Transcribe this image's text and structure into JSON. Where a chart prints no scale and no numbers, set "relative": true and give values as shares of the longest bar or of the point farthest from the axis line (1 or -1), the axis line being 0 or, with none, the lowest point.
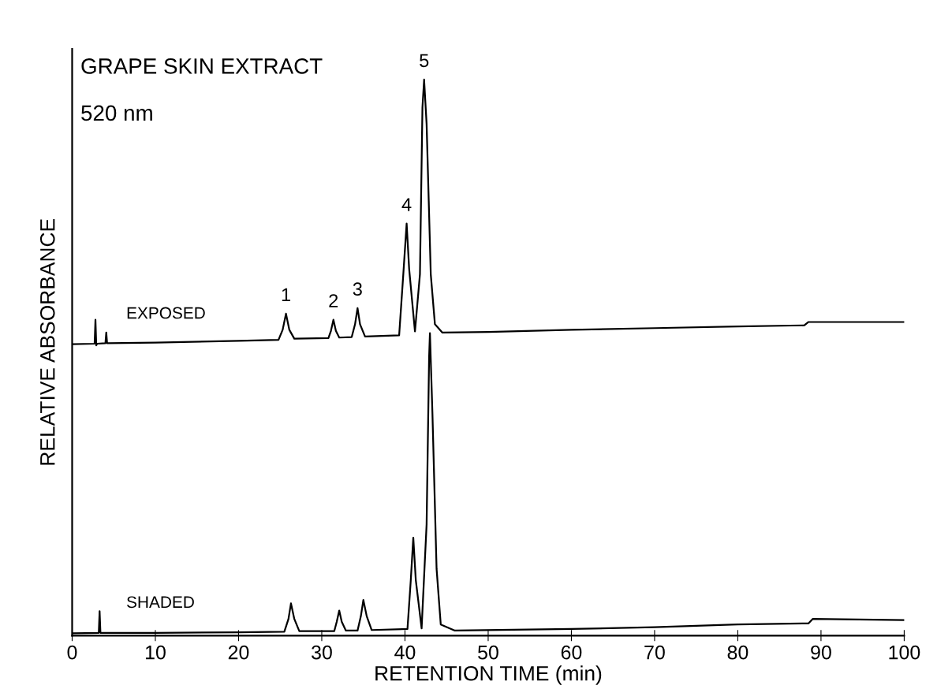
{
  "chart_data": {
    "type": "line",
    "title": "GRAPE SKIN EXTRACT",
    "subtitle": "520 nm",
    "xlabel": "RETENTION TIME (min)",
    "ylabel": "RELATIVE ABSORBANCE",
    "relative": true,
    "xlim": [
      0,
      100
    ],
    "xticks": [
      0,
      10,
      20,
      30,
      40,
      50,
      60,
      70,
      80,
      90,
      100
    ],
    "series": [
      {
        "name": "EXPOSED",
        "color": "#000000",
        "x": [
          0,
          2.7,
          2.8,
          2.9,
          3.0,
          4.0,
          4.1,
          4.2,
          10,
          20,
          24.8,
          25.3,
          25.7,
          26.1,
          26.7,
          30.8,
          31.1,
          31.4,
          31.7,
          32.1,
          33.6,
          34.0,
          34.3,
          34.6,
          35.2,
          39.3,
          39.8,
          40.2,
          40.5,
          41.2,
          41.8,
          42.1,
          42.3,
          42.6,
          43.1,
          43.6,
          44.5,
          50,
          60,
          70,
          80,
          88,
          88.5,
          100
        ],
        "values": [
          0.524,
          0.525,
          0.568,
          0.522,
          0.525,
          0.526,
          0.545,
          0.526,
          0.527,
          0.53,
          0.532,
          0.55,
          0.579,
          0.55,
          0.534,
          0.535,
          0.548,
          0.568,
          0.548,
          0.536,
          0.537,
          0.56,
          0.589,
          0.56,
          0.538,
          0.54,
          0.65,
          0.741,
          0.66,
          0.547,
          0.65,
          0.95,
          1.0,
          0.92,
          0.65,
          0.56,
          0.545,
          0.546,
          0.55,
          0.553,
          0.556,
          0.558,
          0.564,
          0.564
        ]
      },
      {
        "name": "SHADED",
        "color": "#000000",
        "x": [
          0,
          3.2,
          3.3,
          3.4,
          10,
          20,
          25.5,
          26.0,
          26.3,
          26.7,
          27.3,
          31.5,
          31.8,
          32.1,
          32.4,
          32.9,
          34.3,
          34.7,
          35.0,
          35.4,
          36.0,
          40.3,
          40.7,
          41.0,
          41.3,
          42.0,
          42.6,
          42.9,
          43.0,
          43.3,
          43.8,
          44.3,
          46,
          60,
          70,
          80,
          88.5,
          89,
          100
        ],
        "values": [
          0.004,
          0.005,
          0.044,
          0.005,
          0.005,
          0.006,
          0.007,
          0.03,
          0.058,
          0.03,
          0.008,
          0.008,
          0.025,
          0.045,
          0.025,
          0.009,
          0.009,
          0.035,
          0.064,
          0.035,
          0.01,
          0.012,
          0.1,
          0.176,
          0.1,
          0.013,
          0.2,
          0.5,
          0.544,
          0.4,
          0.12,
          0.02,
          0.009,
          0.012,
          0.015,
          0.02,
          0.022,
          0.03,
          0.028
        ]
      }
    ],
    "annotations": [
      {
        "text": "1",
        "x": 25.7,
        "y": 0.579
      },
      {
        "text": "2",
        "x": 31.4,
        "y": 0.568
      },
      {
        "text": "3",
        "x": 34.3,
        "y": 0.589
      },
      {
        "text": "4",
        "x": 40.2,
        "y": 0.741
      },
      {
        "text": "5",
        "x": 42.3,
        "y": 1.0
      }
    ]
  }
}
